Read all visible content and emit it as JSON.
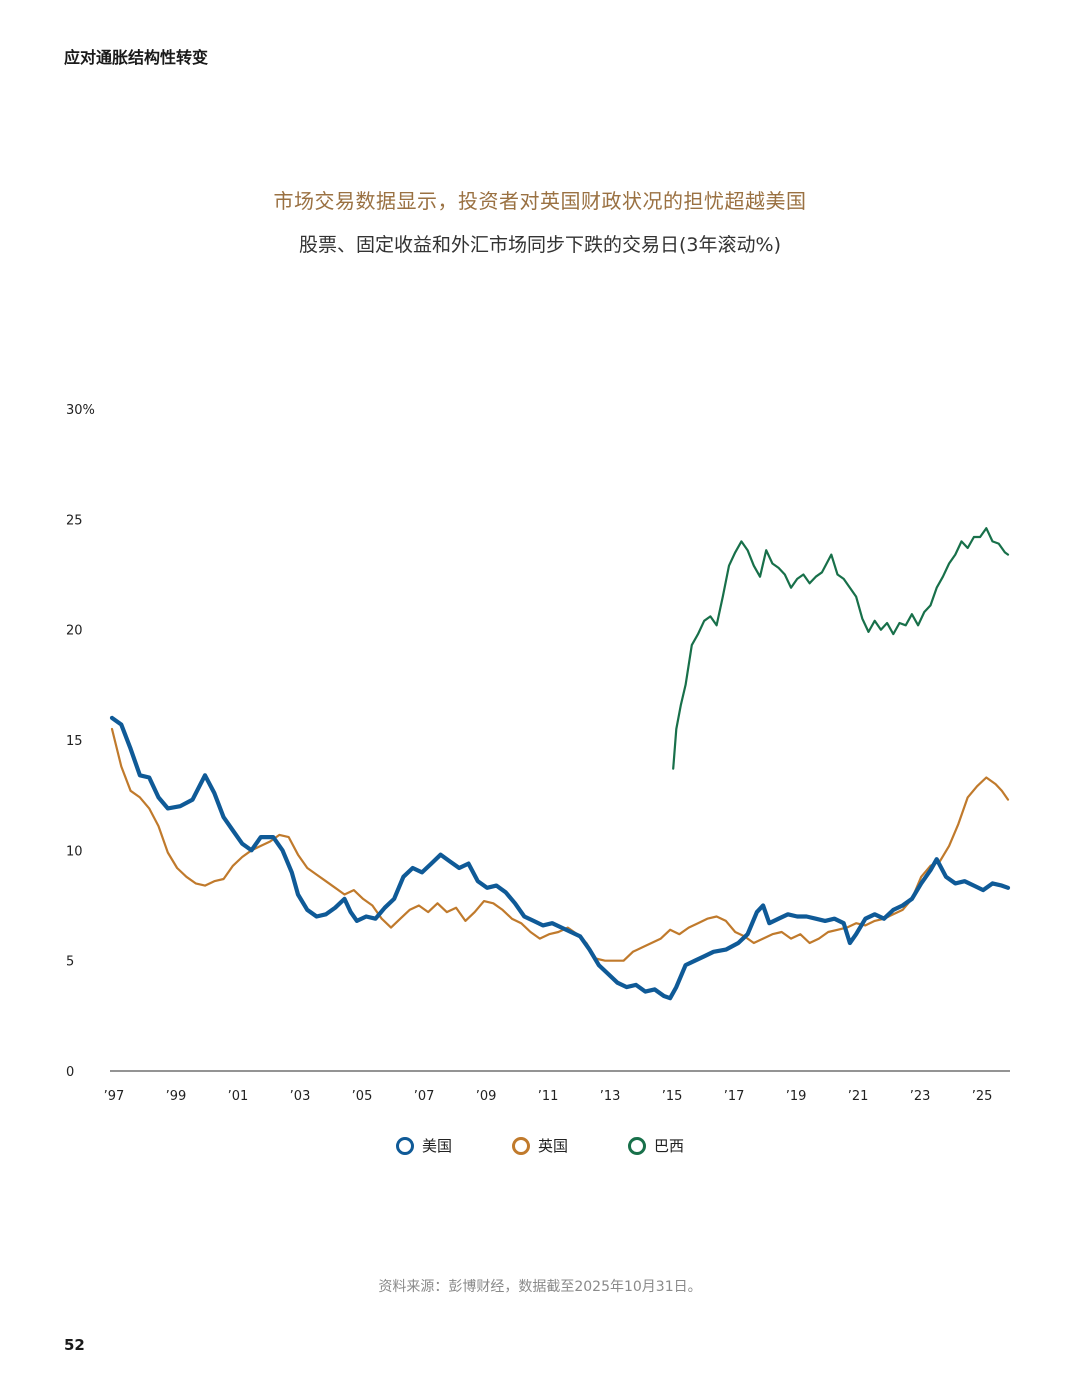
{
  "header": {
    "running_title": "应对通胀结构性转变"
  },
  "footer": {
    "page_number": "52",
    "source_note": "资料来源：彭博财经，数据截至2025年10月31日。"
  },
  "colors": {
    "us": "#0f5a97",
    "uk": "#c07a2c",
    "brazil": "#18704a",
    "title": "#9a7142"
  },
  "chart_data": {
    "type": "line",
    "title": "市场交易数据显示，投资者对英国财政状况的担忧超越美国",
    "subtitle": "股票、固定收益和外汇市场同步下跌的交易日(3年滚动%)",
    "xlabel": "",
    "ylabel": "",
    "xlim": [
      1997.0,
      2025.9
    ],
    "ylim": [
      0,
      30
    ],
    "y_ticks": [
      {
        "value": 0,
        "label": "0"
      },
      {
        "value": 5,
        "label": "5"
      },
      {
        "value": 10,
        "label": "10"
      },
      {
        "value": 15,
        "label": "15"
      },
      {
        "value": 20,
        "label": "20"
      },
      {
        "value": 25,
        "label": "25"
      },
      {
        "value": 30,
        "label": "30%"
      }
    ],
    "x_ticks": [
      {
        "value": 1997,
        "label": "’97"
      },
      {
        "value": 1999,
        "label": "’99"
      },
      {
        "value": 2001,
        "label": "’01"
      },
      {
        "value": 2003,
        "label": "’03"
      },
      {
        "value": 2005,
        "label": "’05"
      },
      {
        "value": 2007,
        "label": "’07"
      },
      {
        "value": 2009,
        "label": "’09"
      },
      {
        "value": 2011,
        "label": "’11"
      },
      {
        "value": 2013,
        "label": "’13"
      },
      {
        "value": 2015,
        "label": "’15"
      },
      {
        "value": 2017,
        "label": "’17"
      },
      {
        "value": 2019,
        "label": "’19"
      },
      {
        "value": 2021,
        "label": "’21"
      },
      {
        "value": 2023,
        "label": "’23"
      },
      {
        "value": 2025,
        "label": "’25"
      }
    ],
    "grid": false,
    "legend_position": "bottom-center",
    "series": [
      {
        "name": "美国",
        "color": "#0f5a97",
        "points": [
          [
            1997.0,
            16.0
          ],
          [
            1997.3,
            15.7
          ],
          [
            1997.6,
            14.6
          ],
          [
            1997.9,
            13.4
          ],
          [
            1998.2,
            13.3
          ],
          [
            1998.5,
            12.4
          ],
          [
            1998.8,
            11.9
          ],
          [
            1999.2,
            12.0
          ],
          [
            1999.6,
            12.3
          ],
          [
            2000.0,
            13.4
          ],
          [
            2000.3,
            12.6
          ],
          [
            2000.6,
            11.5
          ],
          [
            2000.9,
            10.9
          ],
          [
            2001.2,
            10.3
          ],
          [
            2001.5,
            10.0
          ],
          [
            2001.8,
            10.6
          ],
          [
            2002.2,
            10.6
          ],
          [
            2002.5,
            10.0
          ],
          [
            2002.8,
            9.0
          ],
          [
            2003.0,
            8.0
          ],
          [
            2003.3,
            7.3
          ],
          [
            2003.6,
            7.0
          ],
          [
            2003.9,
            7.1
          ],
          [
            2004.2,
            7.4
          ],
          [
            2004.5,
            7.8
          ],
          [
            2004.7,
            7.2
          ],
          [
            2004.9,
            6.8
          ],
          [
            2005.2,
            7.0
          ],
          [
            2005.5,
            6.9
          ],
          [
            2005.8,
            7.4
          ],
          [
            2006.1,
            7.8
          ],
          [
            2006.4,
            8.8
          ],
          [
            2006.7,
            9.2
          ],
          [
            2007.0,
            9.0
          ],
          [
            2007.3,
            9.4
          ],
          [
            2007.6,
            9.8
          ],
          [
            2007.9,
            9.5
          ],
          [
            2008.2,
            9.2
          ],
          [
            2008.5,
            9.4
          ],
          [
            2008.8,
            8.6
          ],
          [
            2009.1,
            8.3
          ],
          [
            2009.4,
            8.4
          ],
          [
            2009.7,
            8.1
          ],
          [
            2010.0,
            7.6
          ],
          [
            2010.3,
            7.0
          ],
          [
            2010.6,
            6.8
          ],
          [
            2010.9,
            6.6
          ],
          [
            2011.2,
            6.7
          ],
          [
            2011.5,
            6.5
          ],
          [
            2011.8,
            6.3
          ],
          [
            2012.1,
            6.1
          ],
          [
            2012.4,
            5.5
          ],
          [
            2012.7,
            4.8
          ],
          [
            2013.0,
            4.4
          ],
          [
            2013.3,
            4.0
          ],
          [
            2013.6,
            3.8
          ],
          [
            2013.9,
            3.9
          ],
          [
            2014.2,
            3.6
          ],
          [
            2014.5,
            3.7
          ],
          [
            2014.8,
            3.4
          ],
          [
            2015.0,
            3.3
          ],
          [
            2015.2,
            3.8
          ],
          [
            2015.5,
            4.8
          ],
          [
            2015.8,
            5.0
          ],
          [
            2016.1,
            5.2
          ],
          [
            2016.4,
            5.4
          ],
          [
            2016.8,
            5.5
          ],
          [
            2017.2,
            5.8
          ],
          [
            2017.5,
            6.2
          ],
          [
            2017.8,
            7.2
          ],
          [
            2018.0,
            7.5
          ],
          [
            2018.2,
            6.7
          ],
          [
            2018.5,
            6.9
          ],
          [
            2018.8,
            7.1
          ],
          [
            2019.1,
            7.0
          ],
          [
            2019.4,
            7.0
          ],
          [
            2019.7,
            6.9
          ],
          [
            2020.0,
            6.8
          ],
          [
            2020.3,
            6.9
          ],
          [
            2020.6,
            6.7
          ],
          [
            2020.8,
            5.8
          ],
          [
            2021.0,
            6.2
          ],
          [
            2021.3,
            6.9
          ],
          [
            2021.6,
            7.1
          ],
          [
            2021.9,
            6.9
          ],
          [
            2022.2,
            7.3
          ],
          [
            2022.5,
            7.5
          ],
          [
            2022.8,
            7.8
          ],
          [
            2023.1,
            8.5
          ],
          [
            2023.4,
            9.1
          ],
          [
            2023.6,
            9.6
          ],
          [
            2023.9,
            8.8
          ],
          [
            2024.2,
            8.5
          ],
          [
            2024.5,
            8.6
          ],
          [
            2024.8,
            8.4
          ],
          [
            2025.1,
            8.2
          ],
          [
            2025.4,
            8.5
          ],
          [
            2025.7,
            8.4
          ],
          [
            2025.9,
            8.3
          ]
        ]
      },
      {
        "name": "英国",
        "color": "#c07a2c",
        "points": [
          [
            1997.0,
            15.5
          ],
          [
            1997.3,
            13.8
          ],
          [
            1997.6,
            12.7
          ],
          [
            1997.9,
            12.4
          ],
          [
            1998.2,
            11.9
          ],
          [
            1998.5,
            11.1
          ],
          [
            1998.8,
            9.9
          ],
          [
            1999.1,
            9.2
          ],
          [
            1999.4,
            8.8
          ],
          [
            1999.7,
            8.5
          ],
          [
            2000.0,
            8.4
          ],
          [
            2000.3,
            8.6
          ],
          [
            2000.6,
            8.7
          ],
          [
            2000.9,
            9.3
          ],
          [
            2001.2,
            9.7
          ],
          [
            2001.5,
            10.0
          ],
          [
            2001.8,
            10.2
          ],
          [
            2002.1,
            10.4
          ],
          [
            2002.4,
            10.7
          ],
          [
            2002.7,
            10.6
          ],
          [
            2003.0,
            9.8
          ],
          [
            2003.3,
            9.2
          ],
          [
            2003.6,
            8.9
          ],
          [
            2003.9,
            8.6
          ],
          [
            2004.2,
            8.3
          ],
          [
            2004.5,
            8.0
          ],
          [
            2004.8,
            8.2
          ],
          [
            2005.1,
            7.8
          ],
          [
            2005.4,
            7.5
          ],
          [
            2005.7,
            6.9
          ],
          [
            2006.0,
            6.5
          ],
          [
            2006.3,
            6.9
          ],
          [
            2006.6,
            7.3
          ],
          [
            2006.9,
            7.5
          ],
          [
            2007.2,
            7.2
          ],
          [
            2007.5,
            7.6
          ],
          [
            2007.8,
            7.2
          ],
          [
            2008.1,
            7.4
          ],
          [
            2008.4,
            6.8
          ],
          [
            2008.7,
            7.2
          ],
          [
            2009.0,
            7.7
          ],
          [
            2009.3,
            7.6
          ],
          [
            2009.6,
            7.3
          ],
          [
            2009.9,
            6.9
          ],
          [
            2010.2,
            6.7
          ],
          [
            2010.5,
            6.3
          ],
          [
            2010.8,
            6.0
          ],
          [
            2011.1,
            6.2
          ],
          [
            2011.4,
            6.3
          ],
          [
            2011.7,
            6.5
          ],
          [
            2012.0,
            6.2
          ],
          [
            2012.3,
            5.8
          ],
          [
            2012.6,
            5.1
          ],
          [
            2012.9,
            5.0
          ],
          [
            2013.2,
            5.0
          ],
          [
            2013.5,
            5.0
          ],
          [
            2013.8,
            5.4
          ],
          [
            2014.1,
            5.6
          ],
          [
            2014.4,
            5.8
          ],
          [
            2014.7,
            6.0
          ],
          [
            2015.0,
            6.4
          ],
          [
            2015.3,
            6.2
          ],
          [
            2015.6,
            6.5
          ],
          [
            2015.9,
            6.7
          ],
          [
            2016.2,
            6.9
          ],
          [
            2016.5,
            7.0
          ],
          [
            2016.8,
            6.8
          ],
          [
            2017.1,
            6.3
          ],
          [
            2017.4,
            6.1
          ],
          [
            2017.7,
            5.8
          ],
          [
            2018.0,
            6.0
          ],
          [
            2018.3,
            6.2
          ],
          [
            2018.6,
            6.3
          ],
          [
            2018.9,
            6.0
          ],
          [
            2019.2,
            6.2
          ],
          [
            2019.5,
            5.8
          ],
          [
            2019.8,
            6.0
          ],
          [
            2020.1,
            6.3
          ],
          [
            2020.4,
            6.4
          ],
          [
            2020.7,
            6.5
          ],
          [
            2021.0,
            6.7
          ],
          [
            2021.3,
            6.6
          ],
          [
            2021.6,
            6.8
          ],
          [
            2021.9,
            6.9
          ],
          [
            2022.2,
            7.1
          ],
          [
            2022.5,
            7.3
          ],
          [
            2022.8,
            7.8
          ],
          [
            2023.1,
            8.8
          ],
          [
            2023.4,
            9.3
          ],
          [
            2023.7,
            9.5
          ],
          [
            2024.0,
            10.2
          ],
          [
            2024.3,
            11.2
          ],
          [
            2024.6,
            12.4
          ],
          [
            2024.9,
            12.9
          ],
          [
            2025.2,
            13.3
          ],
          [
            2025.5,
            13.0
          ],
          [
            2025.7,
            12.7
          ],
          [
            2025.9,
            12.3
          ]
        ]
      },
      {
        "name": "巴西",
        "color": "#18704a",
        "points": [
          [
            2015.1,
            13.7
          ],
          [
            2015.2,
            15.5
          ],
          [
            2015.35,
            16.6
          ],
          [
            2015.5,
            17.5
          ],
          [
            2015.7,
            19.3
          ],
          [
            2015.9,
            19.8
          ],
          [
            2016.1,
            20.4
          ],
          [
            2016.3,
            20.6
          ],
          [
            2016.5,
            20.2
          ],
          [
            2016.7,
            21.5
          ],
          [
            2016.9,
            22.9
          ],
          [
            2017.1,
            23.5
          ],
          [
            2017.3,
            24.0
          ],
          [
            2017.5,
            23.6
          ],
          [
            2017.7,
            22.9
          ],
          [
            2017.9,
            22.4
          ],
          [
            2018.1,
            23.6
          ],
          [
            2018.3,
            23.0
          ],
          [
            2018.5,
            22.8
          ],
          [
            2018.7,
            22.5
          ],
          [
            2018.9,
            21.9
          ],
          [
            2019.1,
            22.3
          ],
          [
            2019.3,
            22.5
          ],
          [
            2019.5,
            22.1
          ],
          [
            2019.7,
            22.4
          ],
          [
            2019.9,
            22.6
          ],
          [
            2020.2,
            23.4
          ],
          [
            2020.4,
            22.5
          ],
          [
            2020.6,
            22.3
          ],
          [
            2020.8,
            21.9
          ],
          [
            2021.0,
            21.5
          ],
          [
            2021.2,
            20.5
          ],
          [
            2021.4,
            19.9
          ],
          [
            2021.6,
            20.4
          ],
          [
            2021.8,
            20.0
          ],
          [
            2022.0,
            20.3
          ],
          [
            2022.2,
            19.8
          ],
          [
            2022.4,
            20.3
          ],
          [
            2022.6,
            20.2
          ],
          [
            2022.8,
            20.7
          ],
          [
            2023.0,
            20.2
          ],
          [
            2023.2,
            20.8
          ],
          [
            2023.4,
            21.1
          ],
          [
            2023.6,
            21.9
          ],
          [
            2023.8,
            22.4
          ],
          [
            2024.0,
            23.0
          ],
          [
            2024.2,
            23.4
          ],
          [
            2024.4,
            24.0
          ],
          [
            2024.6,
            23.7
          ],
          [
            2024.8,
            24.2
          ],
          [
            2025.0,
            24.2
          ],
          [
            2025.2,
            24.6
          ],
          [
            2025.4,
            24.0
          ],
          [
            2025.6,
            23.9
          ],
          [
            2025.8,
            23.5
          ],
          [
            2025.9,
            23.4
          ]
        ]
      }
    ]
  }
}
